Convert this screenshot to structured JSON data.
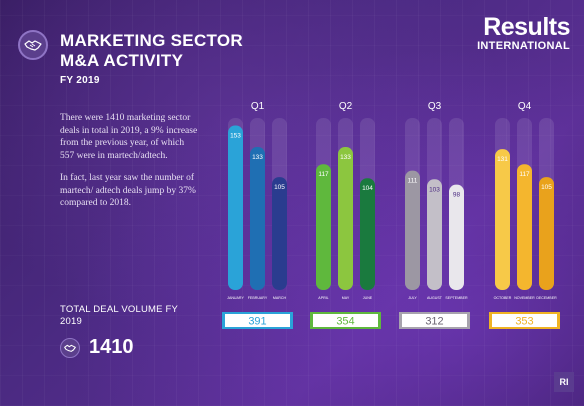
{
  "header": {
    "title_line1": "MARKETING SECTOR",
    "title_line2": "M&A ACTIVITY",
    "subtitle": "FY 2019"
  },
  "brand": {
    "name": "Results",
    "sub": "INTERNATIONAL",
    "mark": "RI"
  },
  "body": {
    "paragraph1": "There were 1410 marketing sector deals in total in 2019, a 9% increase from the previous year, of which 557 were in martech/adtech.",
    "paragraph2": "In fact, last year saw the number of martech/ adtech deals jump by 37% compared to 2018."
  },
  "total": {
    "label": "TOTAL DEAL VOLUME FY 2019",
    "value": "1410"
  },
  "icons": {
    "badge": "handshake-icon"
  },
  "chart_data": {
    "type": "bar",
    "ylim": [
      0,
      160
    ],
    "quarters": [
      {
        "label": "Q1",
        "total": "391",
        "color": "#2aa3d8",
        "months": [
          {
            "name": "JANUARY",
            "value": 153,
            "color": "#2aa3d8"
          },
          {
            "name": "FEBRUARY",
            "value": 133,
            "color": "#1f6fb3"
          },
          {
            "name": "MARCH",
            "value": 105,
            "color": "#2a3c8f"
          }
        ]
      },
      {
        "label": "Q2",
        "total": "354",
        "color": "#5fb83d",
        "months": [
          {
            "name": "APRIL",
            "value": 117,
            "color": "#5fb83d"
          },
          {
            "name": "MAY",
            "value": 133,
            "color": "#8cc63f"
          },
          {
            "name": "JUNE",
            "value": 104,
            "color": "#1a7a3e"
          }
        ]
      },
      {
        "label": "Q3",
        "total": "312",
        "color": "#a7a3ad",
        "months": [
          {
            "name": "JULY",
            "value": 111,
            "color": "#9c97a3"
          },
          {
            "name": "AUGUST",
            "value": 103,
            "color": "#c3bfc8"
          },
          {
            "name": "SEPTEMBER",
            "value": 98,
            "color": "#e9e7ec"
          }
        ]
      },
      {
        "label": "Q4",
        "total": "353",
        "color": "#f0b323",
        "months": [
          {
            "name": "OCTOBER",
            "value": 131,
            "color": "#f7c948"
          },
          {
            "name": "NOVEMBER",
            "value": 117,
            "color": "#f4b62e"
          },
          {
            "name": "DECEMBER",
            "value": 105,
            "color": "#e9a21c"
          }
        ]
      }
    ]
  }
}
